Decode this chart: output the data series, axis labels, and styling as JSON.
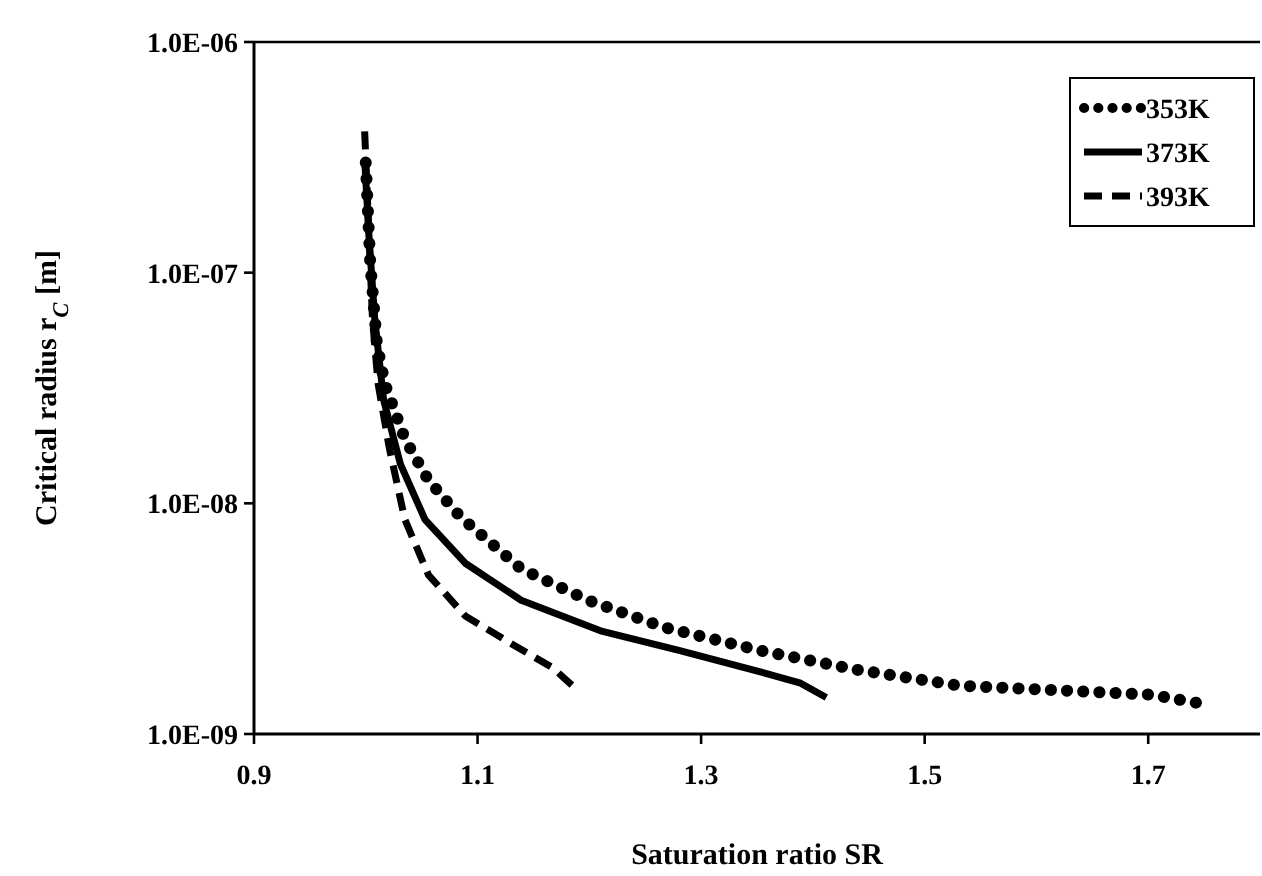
{
  "chart_data": {
    "type": "line",
    "xlabel": "Saturation ratio SR",
    "ylabel": "Critical radius r$_{C}$ [m]",
    "log": "y",
    "xlim": [
      0.9,
      1.8
    ],
    "xticks": [
      0.9,
      1.1,
      1.3,
      1.5,
      1.7
    ],
    "ylim": [
      1e-09,
      1e-06
    ],
    "yticks": [
      {
        "value": 1e-09,
        "label": "1.0E-09"
      },
      {
        "value": 1e-08,
        "label": "1.0E-08"
      },
      {
        "value": 1e-07,
        "label": "1.0E-07"
      },
      {
        "value": 1e-06,
        "label": "1.0E-06"
      }
    ],
    "grid": false,
    "legend": "top right",
    "marker": "none",
    "series": [
      {
        "name": "353K",
        "color": "#000000",
        "line_style": "dotted",
        "x": [
          1.0,
          1.004,
          1.01,
          1.017,
          1.035,
          1.056,
          1.085,
          1.139,
          1.199,
          1.267,
          1.353,
          1.439,
          1.531,
          1.617,
          1.703,
          1.749
        ],
        "values": [
          3e-07,
          1.1e-07,
          4.9e-08,
          3.3e-08,
          1.9e-08,
          1.26e-08,
          8.7e-09,
          5.2e-09,
          3.8e-09,
          2.9e-09,
          2.3e-09,
          1.9e-09,
          1.62e-09,
          1.55e-09,
          1.48e-09,
          1.35e-09
        ]
      },
      {
        "name": "373K",
        "color": "#000000",
        "line_style": "solid",
        "x": [
          0.999,
          1.003,
          1.008,
          1.016,
          1.031,
          1.053,
          1.089,
          1.139,
          1.21,
          1.281,
          1.353,
          1.389,
          1.412
        ],
        "values": [
          3.1e-07,
          1.4e-07,
          6.3e-08,
          2.8e-08,
          1.48e-08,
          8.5e-09,
          5.5e-09,
          3.8e-09,
          2.8e-09,
          2.3e-09,
          1.86e-09,
          1.66e-09,
          1.44e-09
        ]
      },
      {
        "name": "393K",
        "color": "#000000",
        "line_style": "dashed",
        "x": [
          0.999,
          1.003,
          1.006,
          1.011,
          1.021,
          1.035,
          1.056,
          1.089,
          1.131,
          1.167,
          1.185
        ],
        "values": [
          4.1e-07,
          1.4e-07,
          6.3e-08,
          3.3e-08,
          1.74e-08,
          8.5e-09,
          4.9e-09,
          3.25e-09,
          2.45e-09,
          1.94e-09,
          1.62e-09
        ]
      }
    ]
  }
}
